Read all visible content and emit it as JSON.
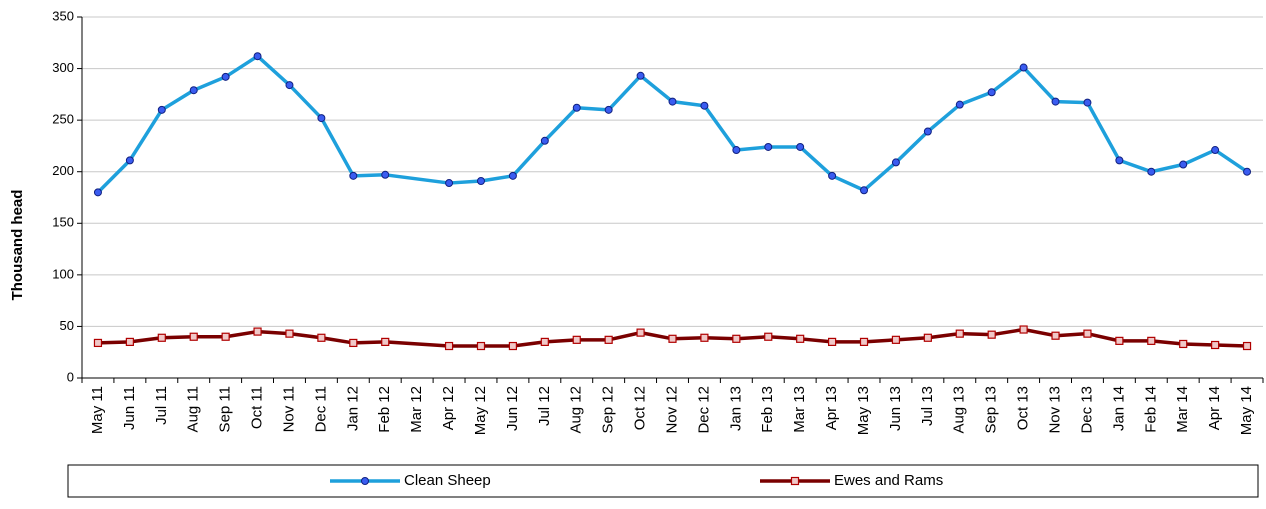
{
  "chart_data": {
    "type": "line",
    "y_label": "Thousand head",
    "categories": [
      "May 11",
      "Jun 11",
      "Jul 11",
      "Aug 11",
      "Sep 11",
      "Oct 11",
      "Nov 11",
      "Dec 11",
      "Jan 12",
      "Feb 12",
      "Mar 12",
      "Apr 12",
      "May 12",
      "Jun 12",
      "Jul 12",
      "Aug 12",
      "Sep 12",
      "Oct 12",
      "Nov 12",
      "Dec 12",
      "Jan 13",
      "Feb 13",
      "Mar 13",
      "Apr 13",
      "May 13",
      "Jun 13",
      "Jul 13",
      "Aug 13",
      "Sep 13",
      "Oct 13",
      "Nov 13",
      "Dec 13",
      "Jan 14",
      "Feb 14",
      "Mar 14",
      "Apr 14",
      "May 14"
    ],
    "series": [
      {
        "name": "Clean Sheep",
        "color": "#1ea0dc",
        "marker_color": "#3a5cf0",
        "marker": "circle",
        "values": [
          180,
          211,
          260,
          279,
          292,
          312,
          284,
          252,
          196,
          197,
          null,
          189,
          191,
          196,
          230,
          262,
          260,
          293,
          268,
          264,
          221,
          224,
          224,
          196,
          182,
          209,
          239,
          265,
          277,
          301,
          268,
          267,
          211,
          200,
          207,
          221,
          200
        ]
      },
      {
        "name": "Ewes and Rams",
        "color": "#7a0000",
        "marker_color": "#f0c8c8",
        "marker": "square",
        "values": [
          34,
          35,
          39,
          40,
          40,
          45,
          43,
          39,
          34,
          35,
          null,
          31,
          31,
          31,
          35,
          37,
          37,
          44,
          38,
          39,
          38,
          40,
          38,
          35,
          35,
          37,
          39,
          43,
          42,
          47,
          41,
          43,
          36,
          36,
          33,
          32,
          31
        ]
      }
    ],
    "ylim": [
      0,
      350
    ],
    "yticks": [
      0,
      50,
      100,
      150,
      200,
      250,
      300,
      350
    ],
    "grid": true
  }
}
